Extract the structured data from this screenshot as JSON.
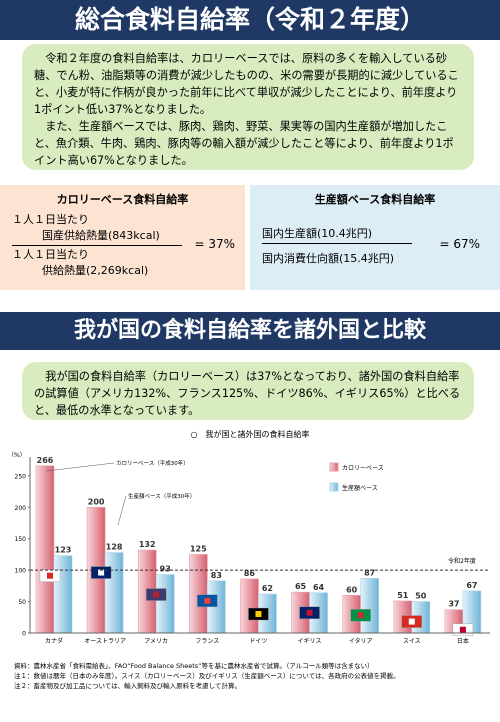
{
  "header": {
    "title": "総合食料自給率（令和２年度）"
  },
  "intro": {
    "paragraphs": [
      "令和２年度の食料自給率は、カロリーベースでは、原料の多くを輸入している砂糖、でん粉、油脂類等の消費が減少したものの、米の需要が長期的に減少していること、小麦が特に作柄が良かった前年に比べて単収が減少したことにより、前年度より1ポイント低い37%となりました。",
      "また、生産額ベースでは、豚肉、鶏肉、野菜、果実等の国内生産額が増加したこと、魚介類、牛肉、鶏肉、豚肉等の輸入額が減少したこと等により、前年度より1ポイント高い67%となりました。"
    ]
  },
  "formulas": [
    {
      "title": "カロリーベース食料自給率",
      "numerator": [
        "１人１日当たり",
        "国産供給熱量(843kcal)"
      ],
      "denominator": [
        "１人１日当たり",
        "供給熱量(2,269kcal)"
      ],
      "result": "= 37%"
    },
    {
      "title": "生産額ベース食料自給率",
      "numerator": [
        "国内生産額(10.4兆円)"
      ],
      "denominator": [
        "国内消費仕向額(15.4兆円)"
      ],
      "result": "= 67%"
    }
  ],
  "section2": {
    "title": "我が国の食料自給率を諸外国と比較",
    "text": "我が国の食料自給率（カロリーベース）は37%となっており、諸外国の食料自給率の試算値（アメリカ132%、フランス125%、ドイツ86%、イギリス65%）と比べると、最低の水準となっています。"
  },
  "chart_data": {
    "type": "bar",
    "title": "○　我が国と諸外国の食料自給率",
    "y_label": "（%）",
    "categories": [
      "カナダ",
      "オーストラリア",
      "アメリカ",
      "フランス",
      "ドイツ",
      "イギリス",
      "イタリア",
      "スイス",
      "日本"
    ],
    "series": [
      {
        "name": "カロリーベース",
        "color": "#e8a0a8",
        "values": [
          266,
          200,
          132,
          125,
          86,
          65,
          60,
          51,
          37
        ]
      },
      {
        "name": "生産額ベース",
        "color": "#a8d4ea",
        "values": [
          123,
          128,
          93,
          83,
          62,
          64,
          87,
          50,
          67
        ]
      }
    ],
    "ylim": [
      0,
      280
    ],
    "yticks": [
      0,
      50,
      100,
      150,
      200,
      250
    ],
    "reference_line": 100,
    "annotations": [
      "カロリーベース（平成30年）",
      "生産額ベース（平成30年）",
      "令和2年度"
    ]
  },
  "footnotes": [
    "資料：農林水産省「食料需給表」、FAO“Food Balance Sheets”等を基に農林水産省で試算。（アルコール類等は含まない）",
    "注１：数値は暦年（日本のみ年度）。スイス（カロリーベース）及びイギリス（生産額ベース）については、各政府の公表値を掲載。",
    "注２：畜産物及び加工品については、輸入飼料及び輸入原料を考慮して計算。"
  ]
}
